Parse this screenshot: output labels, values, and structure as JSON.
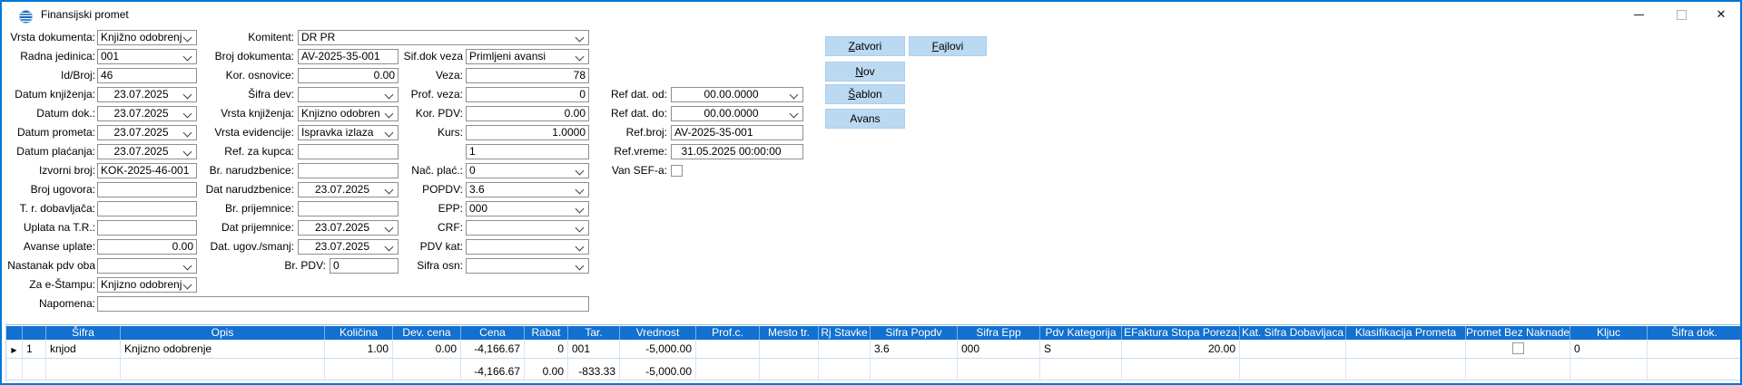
{
  "window": {
    "title": "Finansijski promet"
  },
  "buttons": [
    {
      "label": "Zatvori",
      "accel": "Z"
    },
    {
      "label": "Fajlovi",
      "accel": "F"
    },
    {
      "label": "Nov",
      "accel": "N"
    },
    {
      "label": "Šablon",
      "accel": "Š"
    },
    {
      "label": "Avans",
      "accel": ""
    }
  ],
  "form": {
    "col1": [
      {
        "row": 1,
        "label": "Vrsta dokumenta:",
        "value": "Knjižno odobrenj",
        "type": "combo"
      },
      {
        "row": 2,
        "label": "Radna jedinica:",
        "value": "001",
        "type": "combo"
      },
      {
        "row": 3,
        "label": "Id/Broj:",
        "value": "46",
        "type": "text"
      },
      {
        "row": 4,
        "label": "Datum knjiženja:",
        "value": "23.07.2025",
        "type": "date"
      },
      {
        "row": 5,
        "label": "Datum dok.:",
        "value": "23.07.2025",
        "type": "date"
      },
      {
        "row": 6,
        "label": "Datum prometa:",
        "value": "23.07.2025",
        "type": "date"
      },
      {
        "row": 7,
        "label": "Datum plaćanja:",
        "value": "23.07.2025",
        "type": "date"
      },
      {
        "row": 8,
        "label": "Izvorni broj:",
        "value": "KOK-2025-46-001",
        "type": "text"
      },
      {
        "row": 9,
        "label": "Broj ugovora:",
        "value": "",
        "type": "text"
      },
      {
        "row": 10,
        "label": "T. r. dobavljača:",
        "value": "",
        "type": "text"
      },
      {
        "row": 11,
        "label": "Uplata na T.R.:",
        "value": "",
        "type": "text"
      },
      {
        "row": 12,
        "label": "Avanse uplate:",
        "value": "0.00",
        "type": "text",
        "align": "right"
      },
      {
        "row": 13,
        "label": "Nastanak pdv oba",
        "value": "",
        "type": "combo"
      },
      {
        "row": 14,
        "label": "Za e-Štampu:",
        "value": "Knjizno odobrenj",
        "type": "combo"
      },
      {
        "row": 15,
        "label": "Napomena:",
        "value": "",
        "type": "text",
        "wide": true
      }
    ],
    "col2": [
      {
        "row": 1,
        "label": "Komitent:",
        "value": "DR PR",
        "type": "combo",
        "wide": true
      },
      {
        "row": 2,
        "label": "Broj dokumenta:",
        "value": "AV-2025-35-001",
        "type": "text"
      },
      {
        "row": 3,
        "label": "Kor. osnovice:",
        "value": "0.00",
        "type": "text",
        "align": "right"
      },
      {
        "row": 4,
        "label": "Šifra dev:",
        "value": "",
        "type": "combo"
      },
      {
        "row": 5,
        "label": "Vrsta knjiženja:",
        "value": "Knjizno odobren",
        "type": "combo"
      },
      {
        "row": 6,
        "label": "Vrsta evidencije:",
        "value": "Ispravka izlaza",
        "type": "combo"
      },
      {
        "row": 7,
        "label": "Ref. za kupca:",
        "value": "",
        "type": "text"
      },
      {
        "row": 8,
        "label": "Br. narudzbenice:",
        "value": "",
        "type": "text"
      },
      {
        "row": 9,
        "label": "Dat narudzbenice:",
        "value": "23.07.2025",
        "type": "date"
      },
      {
        "row": 10,
        "label": "Br. prijemnice:",
        "value": "",
        "type": "text"
      },
      {
        "row": 11,
        "label": "Dat prijemnice:",
        "value": "23.07.2025",
        "type": "date"
      },
      {
        "row": 12,
        "label": "Dat. ugov./smanj:",
        "value": "23.07.2025",
        "type": "date"
      },
      {
        "row": 13,
        "label": "Br. PDV:",
        "value": "0",
        "type": "text",
        "narrow": true
      }
    ],
    "col3": [
      {
        "row": 2,
        "label": "Sif.dok veza",
        "value": "Primljeni avansi",
        "type": "combo"
      },
      {
        "row": 3,
        "label": "Veza:",
        "value": "78",
        "type": "text",
        "align": "right"
      },
      {
        "row": 4,
        "label": "Prof. veza:",
        "value": "0",
        "type": "text",
        "align": "right"
      },
      {
        "row": 5,
        "label": "Kor. PDV:",
        "value": "0.00",
        "type": "text",
        "align": "right"
      },
      {
        "row": 6,
        "label": "Kurs:",
        "value": "1.0000",
        "type": "text",
        "align": "right"
      },
      {
        "row": 7,
        "label": "",
        "value": "1",
        "type": "text"
      },
      {
        "row": 8,
        "label": "Nač. plać.:",
        "value": "0",
        "type": "combo"
      },
      {
        "row": 9,
        "label": "POPDV:",
        "value": "3.6",
        "type": "combo"
      },
      {
        "row": 10,
        "label": "EPP:",
        "value": "000",
        "type": "combo"
      },
      {
        "row": 11,
        "label": "CRF:",
        "value": "",
        "type": "combo"
      },
      {
        "row": 12,
        "label": "PDV kat:",
        "value": "",
        "type": "combo"
      },
      {
        "row": 13,
        "label": "Sifra osn:",
        "value": "",
        "type": "combo"
      }
    ],
    "col4": [
      {
        "row": 4,
        "label": "Ref dat. od:",
        "value": "00.00.0000",
        "type": "date"
      },
      {
        "row": 5,
        "label": "Ref dat. do:",
        "value": "00.00.0000",
        "type": "date"
      },
      {
        "row": 6,
        "label": "Ref.broj:",
        "value": "AV-2025-35-001",
        "type": "text"
      },
      {
        "row": 7,
        "label": "Ref.vreme:",
        "value": "31.05.2025 00:00:00",
        "type": "text",
        "align": "center"
      },
      {
        "row": 8,
        "label": "Van SEF-a:",
        "value": "unchecked",
        "type": "checkbox"
      }
    ]
  },
  "grid": {
    "columns": [
      "",
      "",
      "Šifra",
      "Opis",
      "Količina",
      "Dev. cena",
      "Cena",
      "Rabat",
      "Tar.",
      "Vrednost",
      "Prof.c.",
      "Mesto tr.",
      "Rj Stavke",
      "Sifra Popdv",
      "Sifra Epp",
      "Pdv Kategorija",
      "EFaktura Stopa Poreza",
      "Kat. Sifra Dobavljaca",
      "Klasifikacija Prometa",
      "Promet Bez Naknade",
      "Kljuc",
      "Šifra dok."
    ],
    "rows": [
      {
        "marker": "▶",
        "cells": [
          "1",
          "knjod",
          "Knjizno odobrenje",
          "1.00",
          "0.00",
          "-4,166.67",
          "0",
          "001",
          "-5,000.00",
          "",
          "",
          "",
          "3.6",
          "000",
          "S",
          "20.00",
          "",
          "",
          "□",
          "0",
          ""
        ]
      }
    ],
    "totals_cells": [
      "",
      "",
      "",
      "",
      "",
      "-4,166.67",
      "0.00",
      "-833.33",
      "-5,000.00",
      "",
      "",
      "",
      "",
      "",
      "",
      "",
      "",
      "",
      "",
      "",
      ""
    ]
  }
}
